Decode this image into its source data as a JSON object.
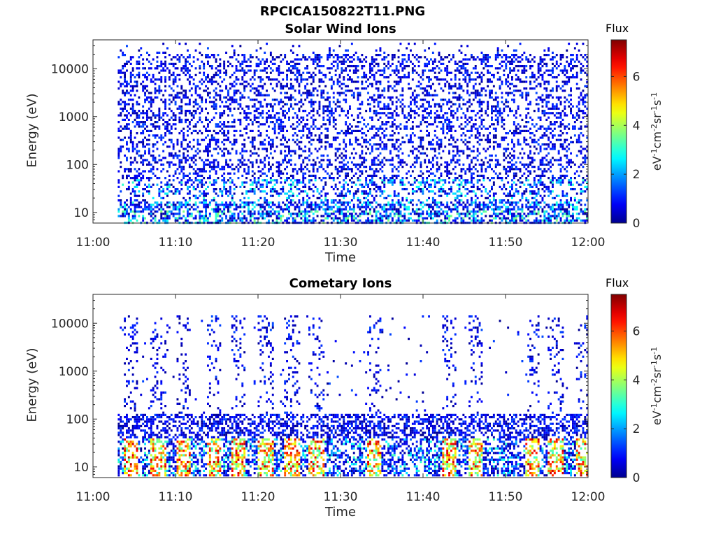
{
  "figure": {
    "title": "RPCICA150822T11.PNG"
  },
  "colormap": {
    "name": "jet",
    "stops": [
      "#00008f",
      "#0000ff",
      "#00ffff",
      "#ffff00",
      "#ff0000",
      "#800000"
    ]
  },
  "chart_data": [
    {
      "type": "heatmap",
      "title": "Solar Wind Ions",
      "xlabel": "Time",
      "ylabel": "Energy (eV)",
      "x_ticks": [
        "11:00",
        "11:10",
        "11:20",
        "11:30",
        "11:40",
        "11:50",
        "12:00"
      ],
      "y_ticks": [
        "10",
        "100",
        "1000",
        "10000"
      ],
      "y_scale": "log",
      "xlim": [
        "11:00",
        "12:00"
      ],
      "ylim": [
        6,
        40000
      ],
      "data_start": "11:03",
      "colorbar": {
        "title": "Flux",
        "label": "eV-1cm-2sr-1s-1",
        "ticks": [
          "0",
          "2",
          "4",
          "6"
        ],
        "range": [
          0,
          7.5
        ]
      },
      "description": "Sparse low-flux (0-2) speckle from ~10 eV to ~30000 eV across 11:03-12:00; higher flux (2-4) at lowest energies (<30 eV)."
    },
    {
      "type": "heatmap",
      "title": "Cometary Ions",
      "xlabel": "Time",
      "ylabel": "Energy (eV)",
      "x_ticks": [
        "11:00",
        "11:10",
        "11:20",
        "11:30",
        "11:40",
        "11:50",
        "12:00"
      ],
      "y_ticks": [
        "10",
        "100",
        "1000",
        "10000"
      ],
      "y_scale": "log",
      "xlim": [
        "11:00",
        "12:00"
      ],
      "ylim": [
        6,
        40000
      ],
      "data_start": "11:03",
      "colorbar": {
        "title": "Flux",
        "label": "eV-1cm-2sr-1s-1",
        "ticks": [
          "0",
          "2",
          "4",
          "6"
        ],
        "range": [
          0,
          7.5
        ]
      },
      "bursts_minutes": [
        4.5,
        7.8,
        10.8,
        14.5,
        17.5,
        20.8,
        24.0,
        27.0,
        34.0,
        43.0,
        46.3,
        53.2,
        56.0,
        59.2
      ],
      "description": "Dense low-flux band below ~120 eV; periodic high-flux bursts (3-7) at ~15-40 eV roughly every 3 minutes; sparse vertical speckle columns up to ~10000 eV."
    }
  ]
}
